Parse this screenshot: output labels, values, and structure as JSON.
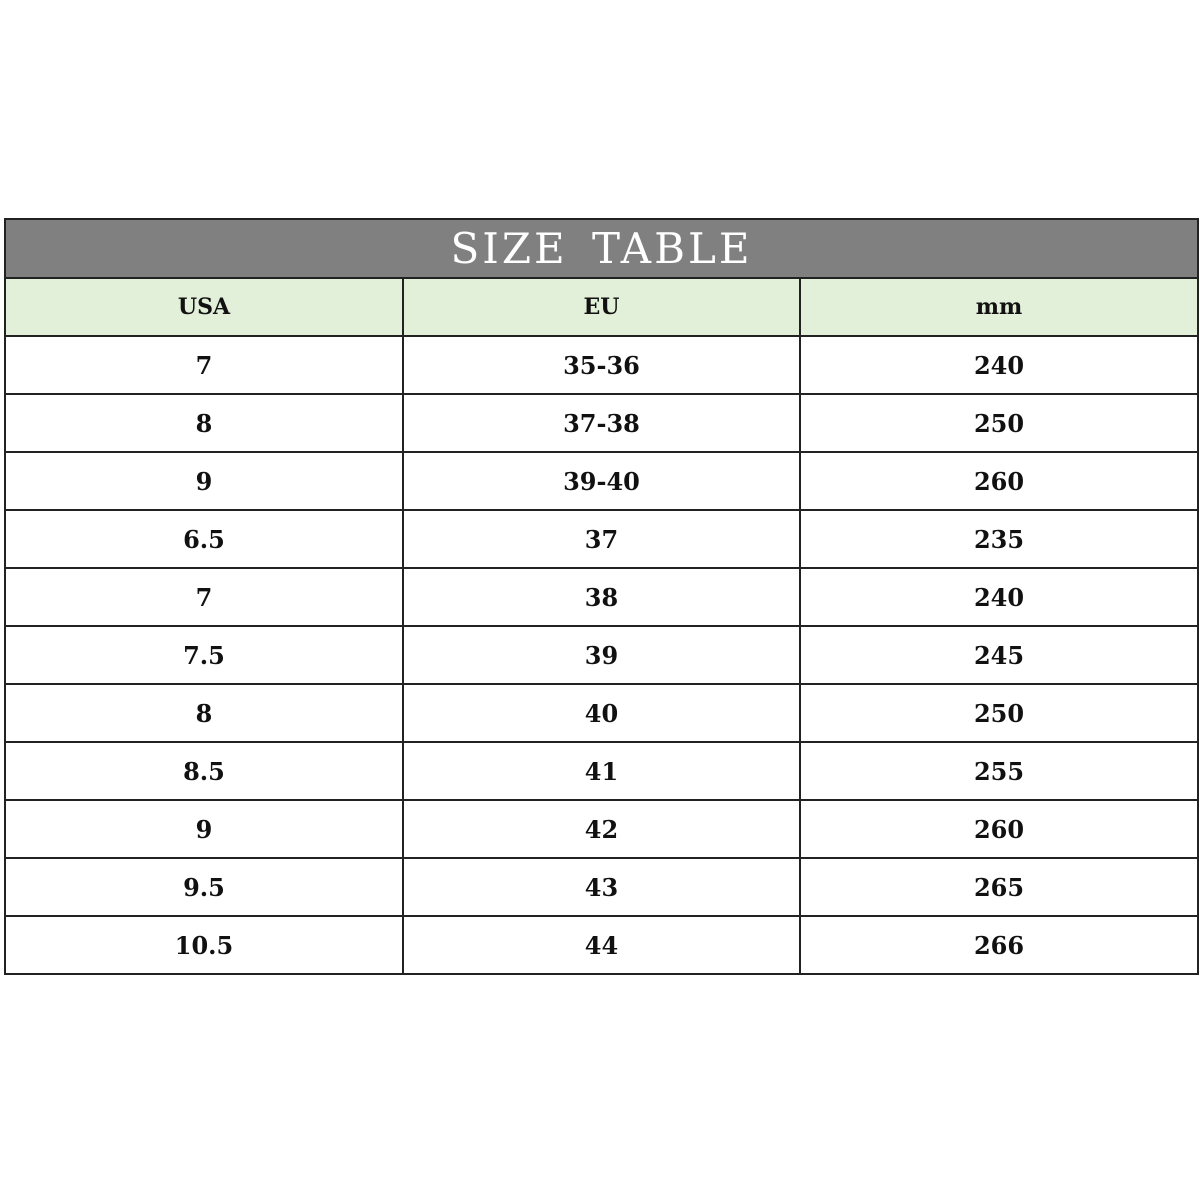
{
  "title": "SIZE TABLE",
  "colors": {
    "title_bg": "#808080",
    "header_bg": "#e2efd9"
  },
  "columns": [
    "USA",
    "EU",
    "mm"
  ],
  "rows": [
    [
      "7",
      "35-36",
      "240"
    ],
    [
      "8",
      "37-38",
      "250"
    ],
    [
      "9",
      "39-40",
      "260"
    ],
    [
      "6.5",
      "37",
      "235"
    ],
    [
      "7",
      "38",
      "240"
    ],
    [
      "7.5",
      "39",
      "245"
    ],
    [
      "8",
      "40",
      "250"
    ],
    [
      "8.5",
      "41",
      "255"
    ],
    [
      "9",
      "42",
      "260"
    ],
    [
      "9.5",
      "43",
      "265"
    ],
    [
      "10.5",
      "44",
      "266"
    ]
  ]
}
